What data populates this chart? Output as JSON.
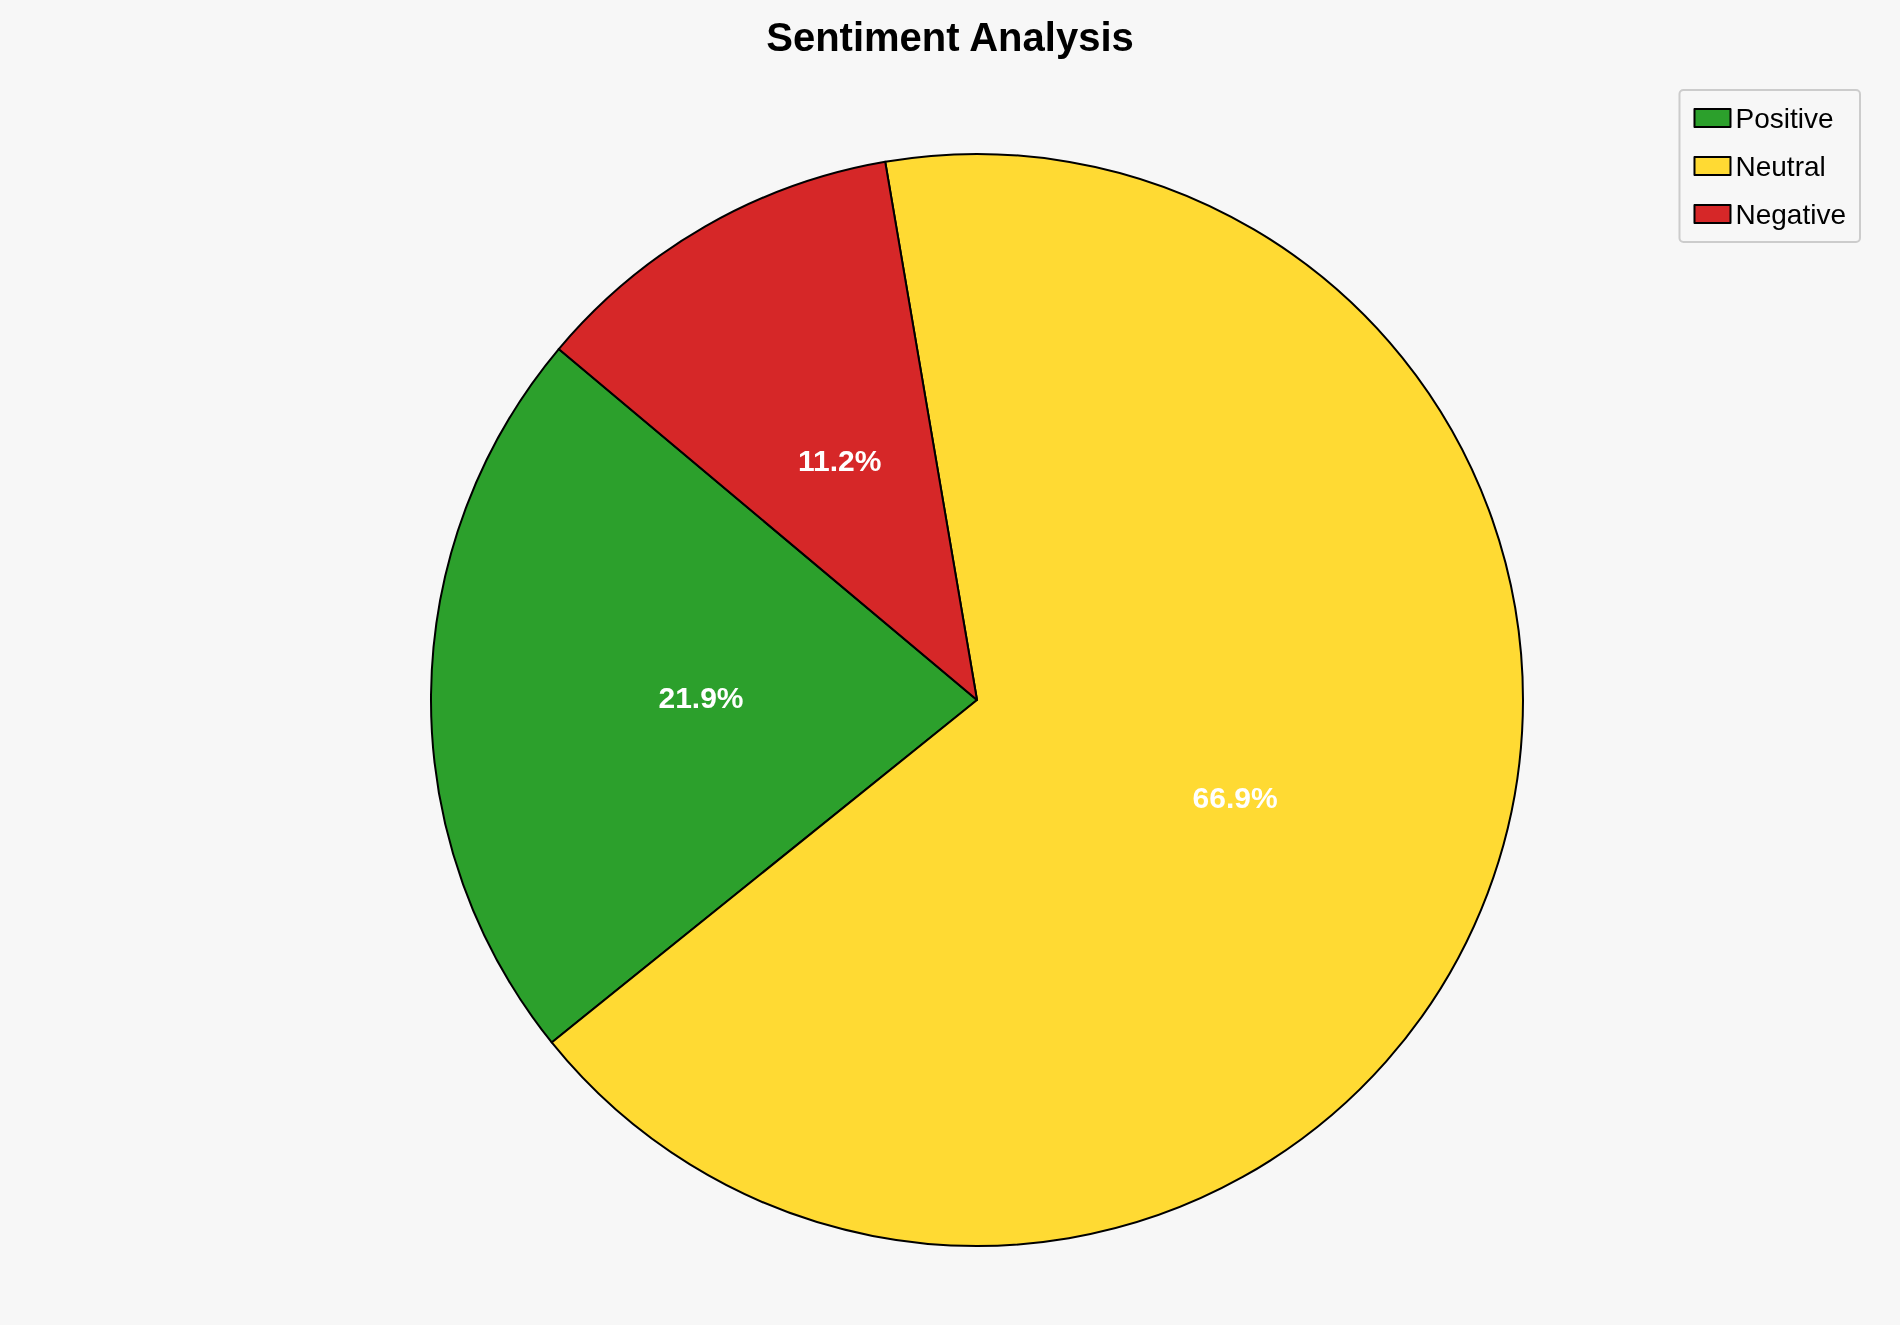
{
  "chart_data": {
    "type": "pie",
    "title": "Sentiment Analysis",
    "categories": [
      "Positive",
      "Neutral",
      "Negative"
    ],
    "values": [
      21.9,
      66.9,
      11.2
    ],
    "colors": [
      "#2ca02c",
      "#ffda33",
      "#d62728"
    ],
    "value_labels": [
      "21.9%",
      "66.9%",
      "11.2%"
    ],
    "legend": "top right"
  }
}
